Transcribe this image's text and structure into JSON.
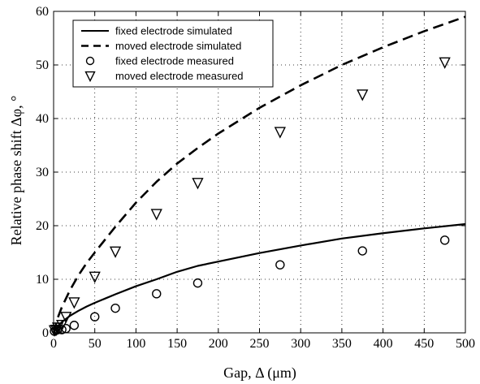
{
  "chart_data": {
    "type": "line",
    "xlabel": "Gap, Δ (μm)",
    "ylabel": "Relative phase shift Δφ, °",
    "xlim": [
      0,
      500
    ],
    "ylim": [
      0,
      60
    ],
    "x_ticks": [
      0,
      50,
      100,
      150,
      200,
      250,
      300,
      350,
      400,
      450,
      500
    ],
    "y_ticks": [
      0,
      10,
      20,
      30,
      40,
      50,
      60
    ],
    "grid": true,
    "legend_position": "top-left",
    "series": [
      {
        "name": "fixed electrode simulated",
        "style": "solid",
        "marker": "none",
        "x": [
          0,
          5,
          10,
          20,
          30,
          40,
          50,
          75,
          100,
          125,
          150,
          175,
          200,
          250,
          300,
          350,
          400,
          450,
          500
        ],
        "values": [
          0,
          1.2,
          2.0,
          3.2,
          4.1,
          4.9,
          5.6,
          7.2,
          8.7,
          10.0,
          11.4,
          12.5,
          13.3,
          14.9,
          16.3,
          17.6,
          18.6,
          19.5,
          20.3
        ]
      },
      {
        "name": "moved electrode simulated",
        "style": "dashed",
        "marker": "none",
        "x": [
          0,
          5,
          10,
          20,
          30,
          40,
          50,
          75,
          100,
          125,
          150,
          175,
          200,
          250,
          300,
          350,
          400,
          450,
          500
        ],
        "values": [
          0,
          2.8,
          4.8,
          8.0,
          10.7,
          13.0,
          15.0,
          19.8,
          24.3,
          28.2,
          31.6,
          34.5,
          37.2,
          42.0,
          46.2,
          50.0,
          53.3,
          56.3,
          59.0
        ]
      },
      {
        "name": "fixed electrode measured",
        "style": "none",
        "marker": "circle",
        "x": [
          1,
          3,
          5,
          10,
          15,
          25,
          50,
          75,
          125,
          175,
          275,
          375,
          475
        ],
        "values": [
          0.3,
          0.5,
          0.6,
          0.6,
          0.8,
          1.4,
          3.0,
          4.6,
          7.3,
          9.3,
          12.7,
          15.3,
          17.3
        ]
      },
      {
        "name": "moved electrode measured",
        "style": "none",
        "marker": "triangle-down",
        "x": [
          1,
          3,
          5,
          10,
          15,
          25,
          50,
          75,
          125,
          175,
          275,
          375,
          475
        ],
        "values": [
          0.5,
          0.6,
          1.0,
          1.5,
          3.0,
          5.7,
          10.5,
          15.2,
          22.2,
          28.0,
          37.5,
          44.5,
          50.5
        ]
      }
    ]
  }
}
